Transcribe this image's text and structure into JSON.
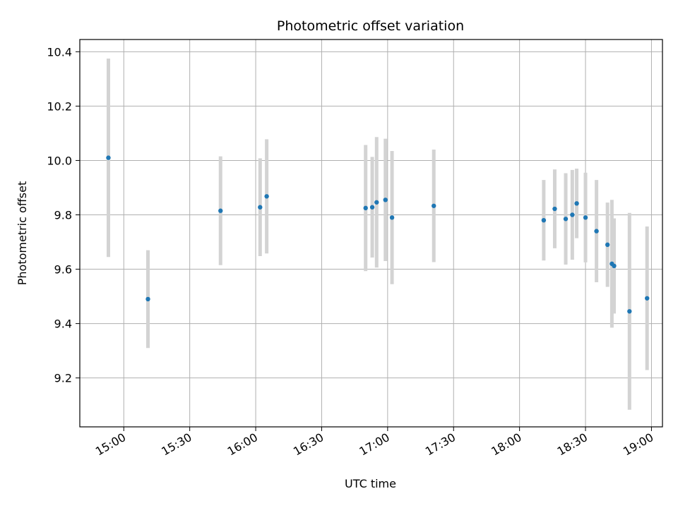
{
  "chart_data": {
    "type": "scatter",
    "title": "Photometric offset variation",
    "xlabel": "UTC time",
    "ylabel": "Photometric offset",
    "xlim": [
      "14:40",
      "19:05"
    ],
    "ylim": [
      9.02,
      10.445
    ],
    "x_ticks": [
      "15:00",
      "15:30",
      "16:00",
      "16:30",
      "17:00",
      "17:30",
      "18:00",
      "18:30",
      "19:00"
    ],
    "y_ticks": [
      9.2,
      9.4,
      9.6,
      9.8,
      10.0,
      10.2,
      10.4
    ],
    "y_tick_labels": [
      "9.2",
      "9.4",
      "9.6",
      "9.8",
      "10.0",
      "10.2",
      "10.4"
    ],
    "grid": true,
    "x_tick_rotation": "30 degrees",
    "series": [
      {
        "marker_color": "#1f77b4",
        "errorbar_color": "#d3d3d3",
        "points": [
          {
            "x": "14:53",
            "y": 10.01,
            "yerr": 0.365
          },
          {
            "x": "15:11",
            "y": 9.49,
            "yerr": 0.18
          },
          {
            "x": "15:44",
            "y": 9.815,
            "yerr": 0.2
          },
          {
            "x": "16:02",
            "y": 9.828,
            "yerr": 0.18
          },
          {
            "x": "16:05",
            "y": 9.868,
            "yerr": 0.21
          },
          {
            "x": "16:50",
            "y": 9.825,
            "yerr": 0.232
          },
          {
            "x": "16:53",
            "y": 9.828,
            "yerr": 0.185
          },
          {
            "x": "16:55",
            "y": 9.846,
            "yerr": 0.24
          },
          {
            "x": "16:59",
            "y": 9.855,
            "yerr": 0.225
          },
          {
            "x": "17:02",
            "y": 9.79,
            "yerr": 0.245
          },
          {
            "x": "17:21",
            "y": 9.833,
            "yerr": 0.207
          },
          {
            "x": "18:11",
            "y": 9.78,
            "yerr": 0.148
          },
          {
            "x": "18:16",
            "y": 9.822,
            "yerr": 0.145
          },
          {
            "x": "18:21",
            "y": 9.785,
            "yerr": 0.168
          },
          {
            "x": "18:24",
            "y": 9.8,
            "yerr": 0.165
          },
          {
            "x": "18:26",
            "y": 9.842,
            "yerr": 0.128
          },
          {
            "x": "18:30",
            "y": 9.79,
            "yerr": 0.165
          },
          {
            "x": "18:35",
            "y": 9.74,
            "yerr": 0.188
          },
          {
            "x": "18:40",
            "y": 9.69,
            "yerr": 0.155
          },
          {
            "x": "18:42",
            "y": 9.62,
            "yerr": 0.235
          },
          {
            "x": "18:43",
            "y": 9.612,
            "yerr": 0.175
          },
          {
            "x": "18:50",
            "y": 9.445,
            "yerr": 0.362
          },
          {
            "x": "18:58",
            "y": 9.493,
            "yerr": 0.264
          }
        ]
      }
    ]
  }
}
